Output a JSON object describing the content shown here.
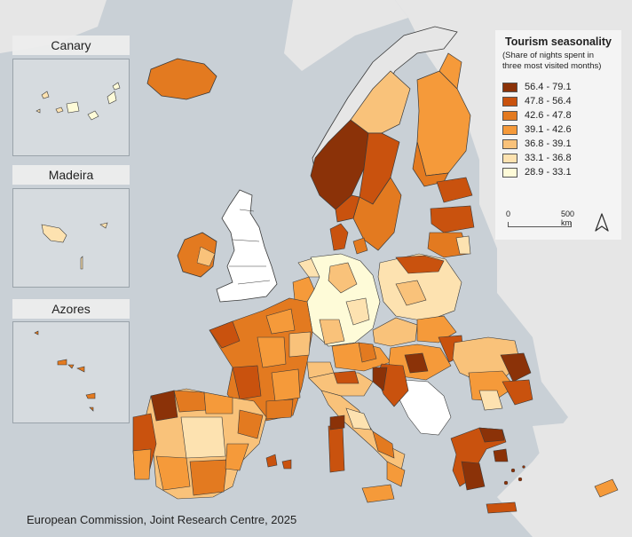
{
  "insets": [
    {
      "name": "Canary"
    },
    {
      "name": "Madeira"
    },
    {
      "name": "Azores"
    }
  ],
  "legend": {
    "title": "Tourism seasonality",
    "subtitle": "(Share of nights spent in three most visited months)",
    "classes": [
      {
        "label": "56.4 - 79.1",
        "color": "#8b3208"
      },
      {
        "label": "47.8 - 56.4",
        "color": "#c9520e"
      },
      {
        "label": "42.6 - 47.8",
        "color": "#e37a20"
      },
      {
        "label": "39.1 - 42.6",
        "color": "#f59a3a"
      },
      {
        "label": "36.8 - 39.1",
        "color": "#f9c27a"
      },
      {
        "label": "33.1 - 36.8",
        "color": "#fde2b0"
      },
      {
        "label": "28.9 - 33.1",
        "color": "#fefbd8"
      }
    ]
  },
  "scale": {
    "zero": "0",
    "end": "500 km"
  },
  "credit": "European Commission, Joint Research Centre, 2025",
  "colors": {
    "sea": "#c9d0d6",
    "land_outside": "#e6e6e6",
    "no_data": "#ffffff",
    "border": "#3a3a3a"
  }
}
